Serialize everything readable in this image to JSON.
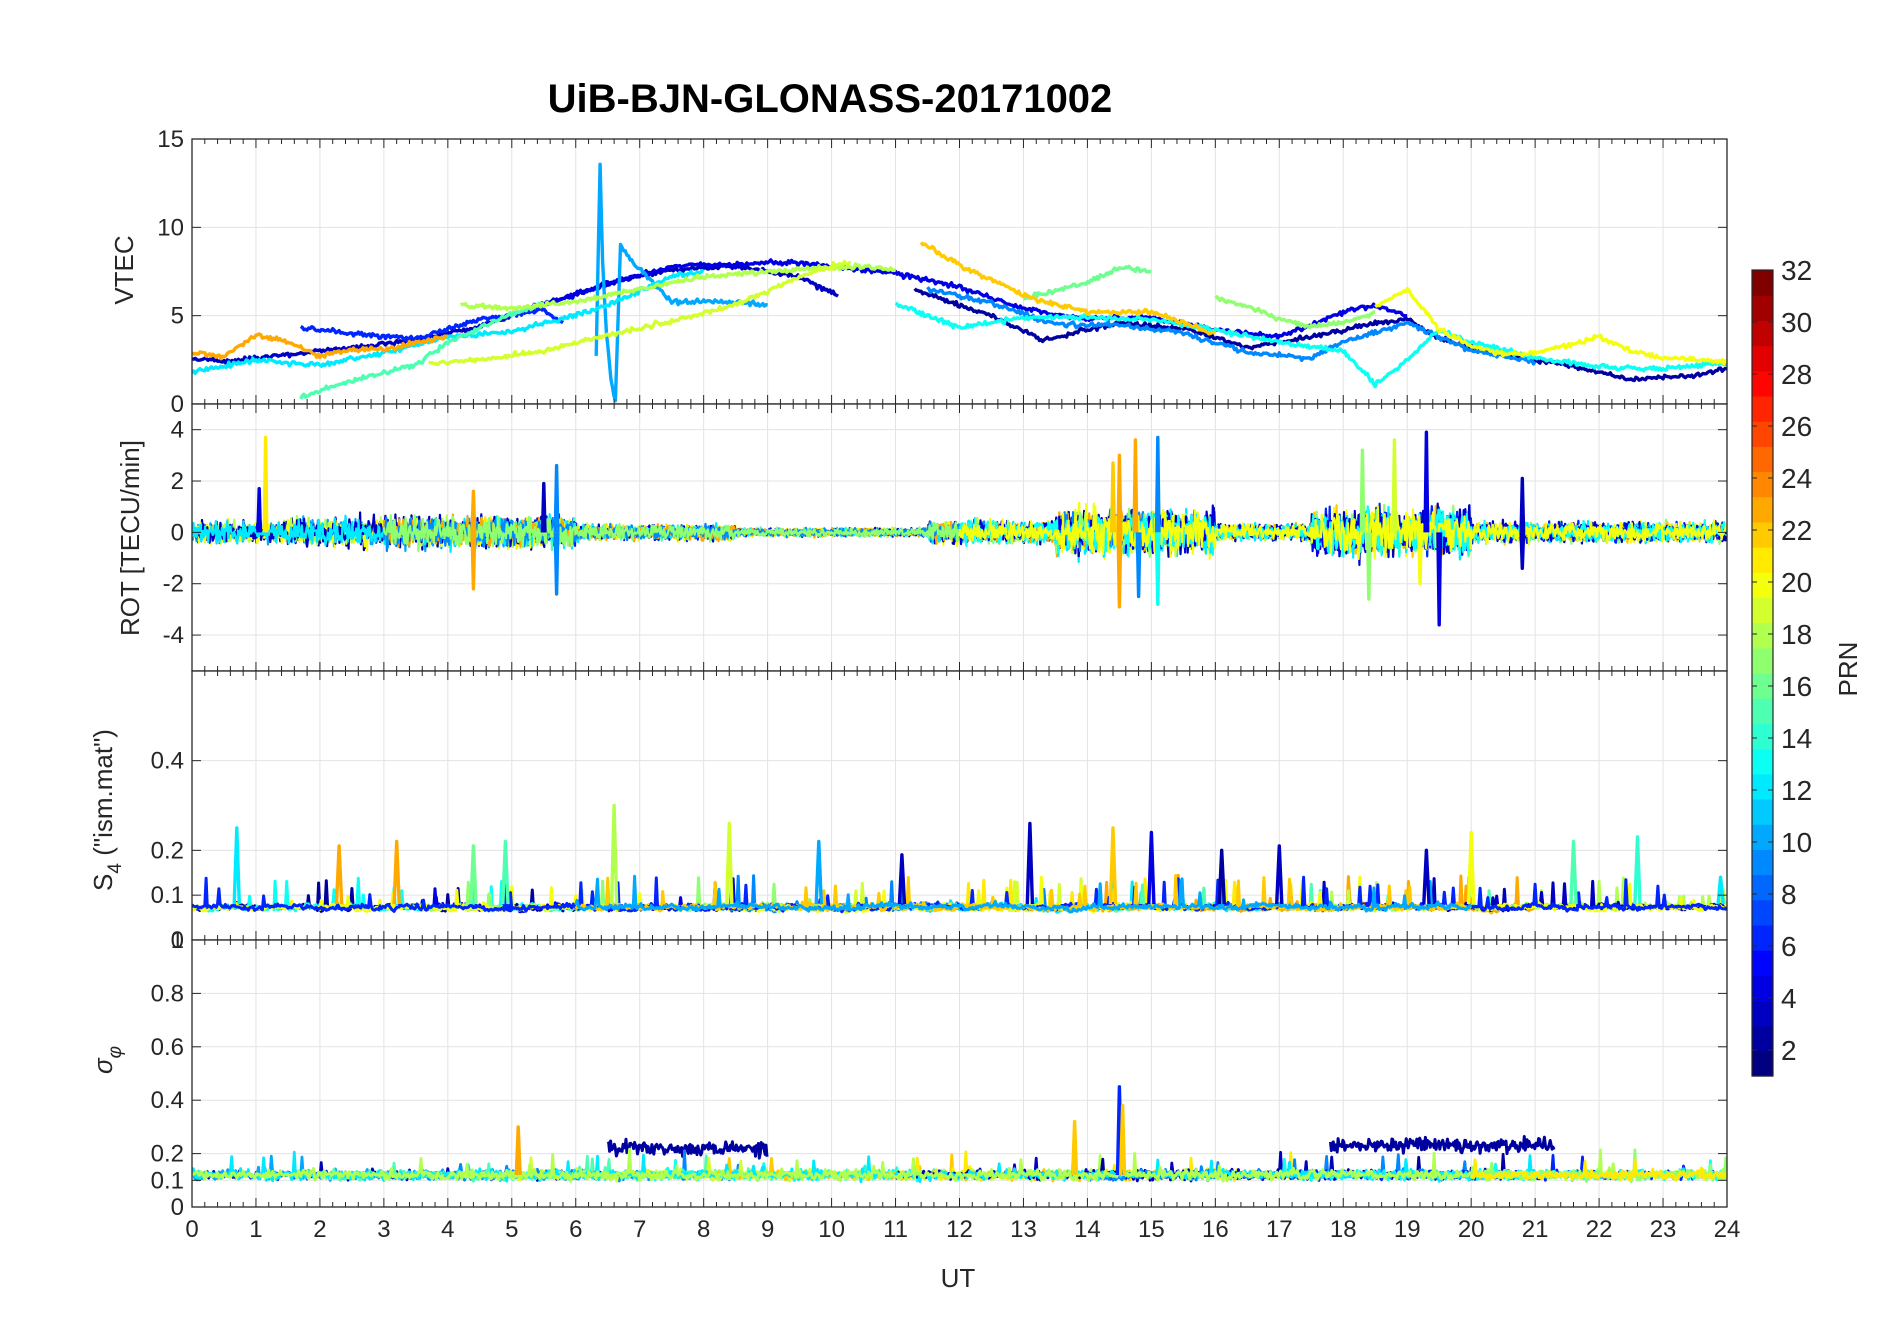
{
  "figure_title": "UiB-BJN-GLONASS-20171002",
  "chart_data": [
    {
      "type": "line",
      "panel": "vtec",
      "ylabel": "VTEC",
      "xlabel": "",
      "xlim": [
        0,
        24
      ],
      "ylim": [
        0,
        15
      ],
      "yticks": [
        0,
        5,
        10,
        15
      ],
      "yticklabels": [
        "0",
        "5",
        "10",
        "15"
      ],
      "xticks": [
        0,
        1,
        2,
        3,
        4,
        5,
        6,
        7,
        8,
        9,
        10,
        11,
        12,
        13,
        14,
        15,
        16,
        17,
        18,
        19,
        20,
        21,
        22,
        23,
        24
      ],
      "grid": true,
      "colorby": "PRN",
      "series": [
        {
          "name": "PRN 2",
          "prn": 2,
          "x": [
            11.3,
            12.5,
            13.3,
            14.5,
            15.5,
            16.5,
            17.5,
            18.5,
            19.0,
            19.5,
            20.5,
            21.5,
            22.5,
            23.5,
            24.0
          ],
          "y": [
            6.5,
            5.0,
            3.6,
            4.6,
            4.3,
            3.2,
            3.8,
            4.6,
            4.8,
            3.7,
            2.8,
            2.2,
            1.4,
            1.6,
            2.0
          ]
        },
        {
          "name": "PRN 3",
          "prn": 3,
          "x": [
            0.0,
            0.5,
            1.5,
            2.5,
            3.5,
            4.5,
            5.5,
            6.5,
            7.5,
            8.5,
            9.5,
            10.1
          ],
          "y": [
            2.6,
            2.4,
            2.8,
            3.2,
            3.6,
            4.4,
            5.6,
            6.8,
            7.6,
            7.8,
            7.2,
            6.1
          ]
        },
        {
          "name": "PRN 4",
          "prn": 4,
          "x": [
            5.3,
            6.0,
            6.5,
            7.0,
            7.5,
            8.0,
            8.5,
            9.0,
            9.5,
            10.0,
            11.0,
            12.0,
            13.0,
            14.0,
            15.0,
            16.0,
            17.0,
            18.0,
            18.5,
            19.0
          ],
          "y": [
            5.5,
            6.2,
            6.8,
            7.3,
            7.8,
            7.9,
            7.9,
            8.0,
            8.0,
            7.8,
            7.4,
            6.6,
            5.4,
            4.8,
            4.9,
            4.2,
            3.8,
            5.2,
            5.6,
            5.0
          ]
        },
        {
          "name": "PRN 6",
          "prn": 6,
          "x": [
            1.7,
            2.5,
            3.5,
            4.5,
            5.5,
            5.8
          ],
          "y": [
            4.3,
            4.0,
            3.7,
            4.8,
            5.3,
            4.6
          ]
        },
        {
          "name": "PRN 9",
          "prn": 9,
          "x": [
            11.5,
            12.5,
            13.5,
            14.5,
            15.5,
            16.5,
            17.5,
            18.0,
            19.0,
            20.0,
            21.0
          ],
          "y": [
            6.5,
            5.7,
            4.5,
            4.5,
            4.0,
            2.9,
            2.6,
            3.5,
            4.6,
            3.0,
            2.4
          ]
        },
        {
          "name": "PRN 10",
          "prn": 10,
          "x": [
            6.32,
            6.38,
            6.42,
            6.48,
            6.55,
            6.62,
            6.7,
            6.9,
            7.5,
            8.5,
            9.0
          ],
          "y": [
            2.8,
            13.6,
            8.0,
            4.0,
            1.5,
            0.1,
            9.0,
            8.0,
            5.8,
            5.8,
            5.6
          ]
        },
        {
          "name": "PRN 12",
          "prn": 12,
          "x": [
            0.0,
            1.0,
            2.0,
            3.0,
            4.0,
            5.0,
            5.5,
            6.0,
            6.5,
            7.0,
            7.5,
            8.0
          ],
          "y": [
            1.8,
            2.5,
            2.2,
            2.9,
            3.8,
            4.1,
            4.6,
            5.0,
            5.6,
            6.4,
            7.2,
            7.5
          ]
        },
        {
          "name": "PRN 13",
          "prn": 13,
          "x": [
            11.0,
            11.5,
            12.0,
            13.0,
            14.0,
            15.0,
            16.0,
            17.0,
            18.0,
            18.5,
            19.0,
            19.5,
            20.0,
            21.0,
            22.0,
            23.0,
            24.0
          ],
          "y": [
            5.7,
            5.0,
            4.3,
            4.9,
            4.9,
            4.8,
            4.2,
            3.5,
            3.0,
            1.1,
            2.5,
            4.2,
            3.5,
            2.6,
            2.1,
            2.0,
            2.3
          ]
        },
        {
          "name": "PRN 15",
          "prn": 15,
          "x": [
            1.7,
            2.3,
            2.9,
            3.5,
            4.0,
            4.5,
            5.0,
            5.5
          ],
          "y": [
            0.4,
            1.1,
            1.7,
            2.2,
            3.5,
            4.3,
            5.1,
            5.7
          ]
        },
        {
          "name": "PRN 16",
          "prn": 16,
          "x": [
            13.0,
            13.5,
            14.0,
            14.5,
            15.0
          ],
          "y": [
            6.0,
            6.4,
            6.9,
            7.7,
            7.5
          ]
        },
        {
          "name": "PRN 17",
          "prn": 17,
          "x": [
            16.0,
            16.5,
            17.0,
            17.5,
            18.0,
            18.5
          ],
          "y": [
            6.0,
            5.5,
            4.8,
            4.4,
            4.6,
            5.2
          ]
        },
        {
          "name": "PRN 18",
          "prn": 18,
          "x": [
            4.2,
            5.0,
            6.0,
            7.0,
            8.0,
            9.0,
            9.8,
            10.5,
            11.0
          ],
          "y": [
            5.6,
            5.4,
            5.8,
            6.5,
            7.2,
            7.5,
            7.7,
            7.8,
            7.6
          ]
        },
        {
          "name": "PRN 19",
          "prn": 19,
          "x": [
            3.7,
            4.5,
            5.5,
            6.5,
            7.5,
            8.5,
            9.0,
            9.5,
            10.0,
            10.3
          ],
          "y": [
            2.3,
            2.5,
            3.0,
            3.9,
            4.7,
            5.6,
            6.4,
            7.2,
            7.8,
            8.0
          ]
        },
        {
          "name": "PRN 20",
          "prn": 20,
          "x": [
            18.5,
            19.0,
            19.5,
            20.0,
            20.5,
            21.0,
            21.5,
            22.0,
            22.5,
            23.0,
            24.0
          ],
          "y": [
            5.5,
            6.5,
            4.2,
            3.3,
            2.8,
            2.9,
            3.3,
            3.8,
            3.0,
            2.6,
            2.4
          ]
        },
        {
          "name": "PRN 22",
          "prn": 22,
          "x": [
            11.4,
            11.8,
            12.2,
            12.8,
            13.3,
            14.0,
            15.0,
            16.0
          ],
          "y": [
            9.2,
            8.3,
            7.5,
            6.5,
            5.8,
            5.2,
            5.2,
            4.0
          ]
        },
        {
          "name": "PRN 23",
          "prn": 23,
          "x": [
            0.0,
            0.5,
            1.0,
            1.5,
            2.0,
            2.5,
            3.0,
            3.5,
            4.0
          ],
          "y": [
            2.9,
            2.7,
            3.9,
            3.5,
            2.7,
            3.1,
            3.1,
            3.5,
            3.8
          ]
        }
      ]
    },
    {
      "type": "line",
      "panel": "rot",
      "ylabel": "ROT [TECU/min]",
      "xlabel": "",
      "xlim": [
        0,
        24
      ],
      "ylim": [
        -5.4,
        5.0
      ],
      "yticks": [
        -4,
        -2,
        0,
        2,
        4
      ],
      "yticklabels": [
        "-4",
        "-2",
        "0",
        "2",
        "4"
      ],
      "grid": true,
      "activity_windows": [
        {
          "from": 0.0,
          "to": 1.5,
          "amp": 0.5
        },
        {
          "from": 1.5,
          "to": 6.0,
          "amp": 0.7
        },
        {
          "from": 6.0,
          "to": 8.5,
          "amp": 0.35
        },
        {
          "from": 8.5,
          "to": 11.5,
          "amp": 0.18
        },
        {
          "from": 11.5,
          "to": 13.5,
          "amp": 0.5
        },
        {
          "from": 13.5,
          "to": 16.0,
          "amp": 1.0
        },
        {
          "from": 16.0,
          "to": 17.5,
          "amp": 0.35
        },
        {
          "from": 17.5,
          "to": 20.0,
          "amp": 1.1
        },
        {
          "from": 20.0,
          "to": 24.0,
          "amp": 0.45
        }
      ],
      "spikes": [
        {
          "x": 1.15,
          "y": 3.7,
          "prn": 21
        },
        {
          "x": 1.05,
          "y": 1.7,
          "prn": 4
        },
        {
          "x": 4.4,
          "y": -2.2,
          "prn": 23
        },
        {
          "x": 4.4,
          "y": 1.6,
          "prn": 23
        },
        {
          "x": 5.5,
          "y": 1.9,
          "prn": 3
        },
        {
          "x": 5.7,
          "y": 2.6,
          "prn": 9
        },
        {
          "x": 5.7,
          "y": -2.4,
          "prn": 9
        },
        {
          "x": 14.4,
          "y": 2.7,
          "prn": 22
        },
        {
          "x": 14.5,
          "y": -2.9,
          "prn": 23
        },
        {
          "x": 14.5,
          "y": 3.0,
          "prn": 23
        },
        {
          "x": 14.75,
          "y": 3.6,
          "prn": 23
        },
        {
          "x": 14.8,
          "y": -2.5,
          "prn": 9
        },
        {
          "x": 15.1,
          "y": 3.7,
          "prn": 9
        },
        {
          "x": 15.1,
          "y": -2.8,
          "prn": 13
        },
        {
          "x": 18.3,
          "y": 3.2,
          "prn": 17
        },
        {
          "x": 18.4,
          "y": -2.6,
          "prn": 17
        },
        {
          "x": 18.8,
          "y": 3.6,
          "prn": 19
        },
        {
          "x": 19.3,
          "y": 3.9,
          "prn": 4
        },
        {
          "x": 19.2,
          "y": -2.0,
          "prn": 20
        },
        {
          "x": 19.5,
          "y": -3.6,
          "prn": 4
        },
        {
          "x": 20.8,
          "y": 2.1,
          "prn": 3
        },
        {
          "x": 20.8,
          "y": -1.4,
          "prn": 3
        }
      ]
    },
    {
      "type": "line",
      "panel": "s4",
      "ylabel": "S4 (\"ism.mat\")",
      "ylabel_display": {
        "base": "S",
        "sub": "4",
        "rest": " (\"ism.mat\")"
      },
      "xlabel": "",
      "xlim": [
        0,
        24
      ],
      "ylim": [
        0,
        0.6
      ],
      "yticks": [
        0,
        0.1,
        0.2,
        0.4
      ],
      "yticklabels": [
        "0",
        "0.1",
        "0.2",
        "0.4"
      ],
      "grid": true,
      "baseline": 0.07,
      "spikes": [
        {
          "x": 0.7,
          "y": 0.25,
          "prn": 12
        },
        {
          "x": 2.3,
          "y": 0.21,
          "prn": 23
        },
        {
          "x": 3.2,
          "y": 0.22,
          "prn": 23
        },
        {
          "x": 4.4,
          "y": 0.21,
          "prn": 16
        },
        {
          "x": 4.9,
          "y": 0.22,
          "prn": 15
        },
        {
          "x": 6.6,
          "y": 0.3,
          "prn": 18
        },
        {
          "x": 8.4,
          "y": 0.26,
          "prn": 19
        },
        {
          "x": 9.8,
          "y": 0.22,
          "prn": 10
        },
        {
          "x": 11.1,
          "y": 0.19,
          "prn": 3
        },
        {
          "x": 13.1,
          "y": 0.26,
          "prn": 3
        },
        {
          "x": 14.4,
          "y": 0.25,
          "prn": 22
        },
        {
          "x": 15.0,
          "y": 0.24,
          "prn": 4
        },
        {
          "x": 16.1,
          "y": 0.2,
          "prn": 2
        },
        {
          "x": 17.0,
          "y": 0.21,
          "prn": 3
        },
        {
          "x": 19.3,
          "y": 0.2,
          "prn": 3
        },
        {
          "x": 20.0,
          "y": 0.24,
          "prn": 20
        },
        {
          "x": 21.6,
          "y": 0.22,
          "prn": 15
        },
        {
          "x": 22.6,
          "y": 0.23,
          "prn": 14
        },
        {
          "x": 23.9,
          "y": 0.14,
          "prn": 12
        }
      ]
    },
    {
      "type": "line",
      "panel": "sigma_phi",
      "ylabel": "σ_φ",
      "ylabel_display": {
        "base": "σ",
        "sub": "φ"
      },
      "xlabel": "UT",
      "xlim": [
        0,
        24
      ],
      "ylim": [
        0,
        1
      ],
      "yticks": [
        0,
        0.1,
        0.2,
        0.4,
        0.6,
        0.8,
        1
      ],
      "yticklabels": [
        "0",
        "0.1",
        "0.2",
        "0.4",
        "0.6",
        "0.8",
        "1"
      ],
      "xticklabels": [
        "0",
        "1",
        "2",
        "3",
        "4",
        "5",
        "6",
        "7",
        "8",
        "9",
        "10",
        "11",
        "12",
        "13",
        "14",
        "15",
        "16",
        "17",
        "18",
        "19",
        "20",
        "21",
        "22",
        "23",
        "24"
      ],
      "grid": true,
      "baseline": 0.12,
      "elevated_windows": [
        {
          "from": 6.5,
          "to": 9.0,
          "level": 0.22,
          "prn": 2
        },
        {
          "from": 17.8,
          "to": 21.3,
          "level": 0.23,
          "prn": 2
        }
      ],
      "spikes": [
        {
          "x": 5.1,
          "y": 0.3,
          "prn": 23
        },
        {
          "x": 13.8,
          "y": 0.32,
          "prn": 22
        },
        {
          "x": 14.5,
          "y": 0.45,
          "prn": 6
        },
        {
          "x": 14.55,
          "y": 0.38,
          "prn": 22
        }
      ]
    }
  ],
  "colorbar": {
    "label": "PRN",
    "colormap": "jet",
    "min": 1,
    "max": 32,
    "levels": 32,
    "ticks": [
      "2",
      "4",
      "6",
      "8",
      "10",
      "12",
      "14",
      "16",
      "18",
      "20",
      "22",
      "24",
      "26",
      "28",
      "30",
      "32"
    ]
  }
}
